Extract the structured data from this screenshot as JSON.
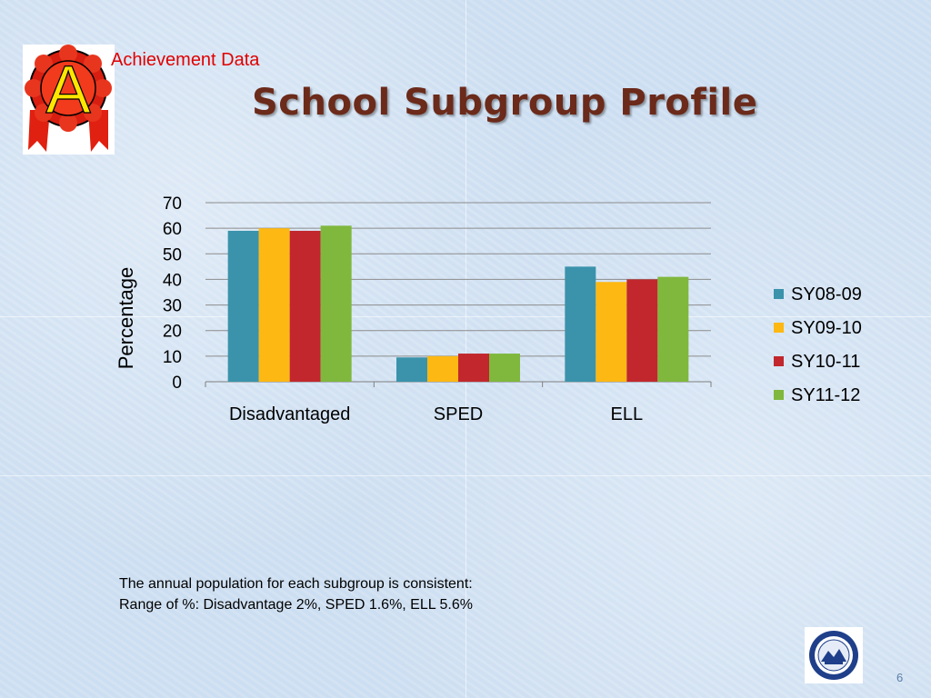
{
  "header": {
    "kicker": "Achievement Data",
    "title": "School Subgroup Profile",
    "logo_letter": "A"
  },
  "colors": {
    "title": "#6b2a1a",
    "kicker": "#e00000",
    "series": [
      "#3a93ab",
      "#fdb813",
      "#c1272d",
      "#7fb83d"
    ]
  },
  "chart_data": {
    "type": "bar",
    "categories": [
      "Disadvantaged",
      "SPED",
      "ELL"
    ],
    "series": [
      {
        "name": "SY08-09",
        "values": [
          59,
          9.5,
          45
        ]
      },
      {
        "name": "SY09-10",
        "values": [
          60,
          10,
          39
        ]
      },
      {
        "name": "SY10-11",
        "values": [
          59,
          11,
          40
        ]
      },
      {
        "name": "SY11-12",
        "values": [
          61,
          11,
          41
        ]
      }
    ],
    "title": "",
    "xlabel": "",
    "ylabel": "Percentage",
    "ylim": [
      0,
      70
    ],
    "yticks": [
      0,
      10,
      20,
      30,
      40,
      50,
      60,
      70
    ],
    "grid": true,
    "legend": "right"
  },
  "note": {
    "line1": "The annual population for each subgroup  is consistent:",
    "line2": "Range of %: Disadvantage 2%, SPED 1.6%, ELL 5.6%"
  },
  "footer": {
    "page_number": "6",
    "seal_icon": "department-of-education-seal-icon"
  }
}
